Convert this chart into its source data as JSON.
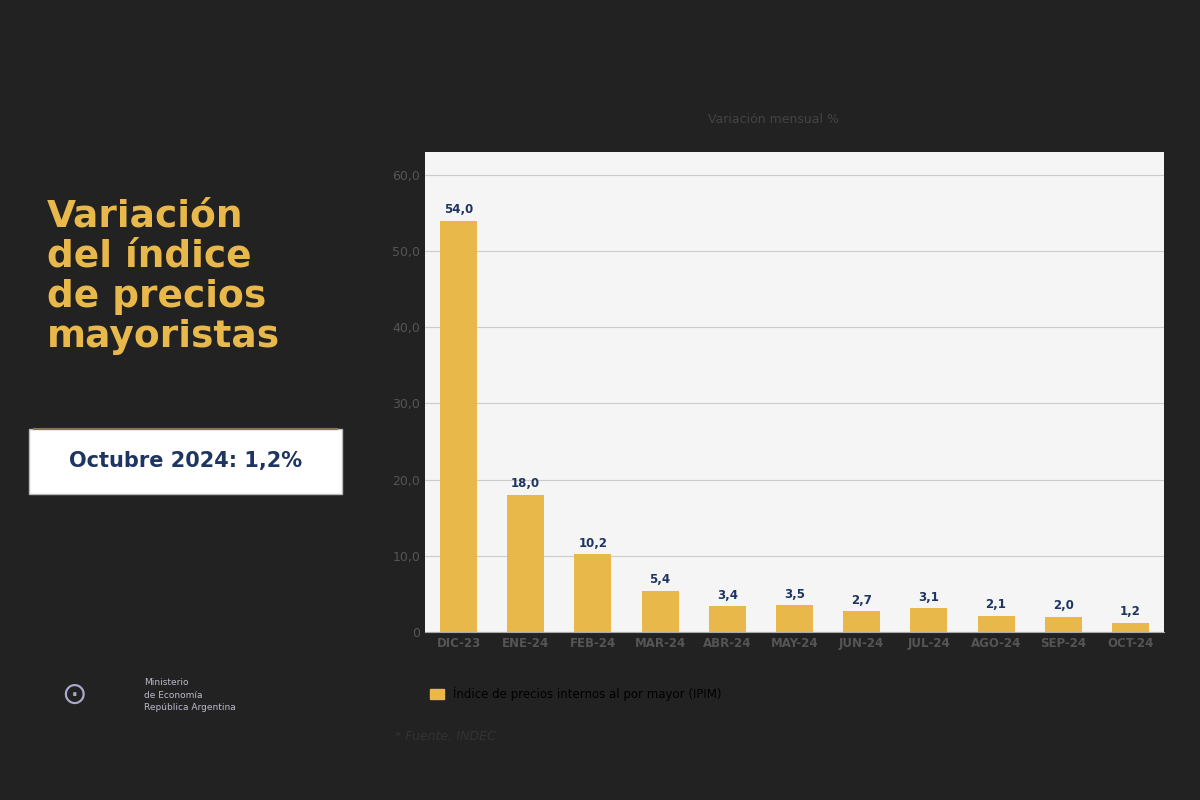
{
  "categories": [
    "DIC-23",
    "ENE-24",
    "FEB-24",
    "MAR-24",
    "ABR-24",
    "MAY-24",
    "JUN-24",
    "JUL-24",
    "AGO-24",
    "SEP-24",
    "OCT-24"
  ],
  "values": [
    54.0,
    18.0,
    10.2,
    5.4,
    3.4,
    3.5,
    2.7,
    3.1,
    2.1,
    2.0,
    1.2
  ],
  "bar_color": "#E8B84B",
  "left_bg_color": "#1E3461",
  "right_bg_color": "#F5F5F5",
  "title_lines": [
    "Variación",
    "del índice",
    "de precios",
    "mayoristas"
  ],
  "title_color": "#E8B84B",
  "subtitle": "Octubre 2024: 1,2%",
  "subtitle_bg": "#FFFFFF",
  "subtitle_color": "#1E3461",
  "chart_title": "Variación mensual %",
  "legend_label": "Índice de precios internos al por mayor (IPIM)",
  "source_text": "* Fuente: INDEC",
  "yticks": [
    0,
    10.0,
    20.0,
    30.0,
    40.0,
    50.0,
    60.0
  ],
  "ylim": [
    0,
    63
  ],
  "grid_color": "#CCCCCC",
  "axis_label_color": "#555555",
  "bar_label_color": "#1E3461",
  "ministry_text": "Ministerio\nde Economía\nRepública Argentina",
  "outer_bg": "#222222",
  "separator_color": "#8B7355"
}
